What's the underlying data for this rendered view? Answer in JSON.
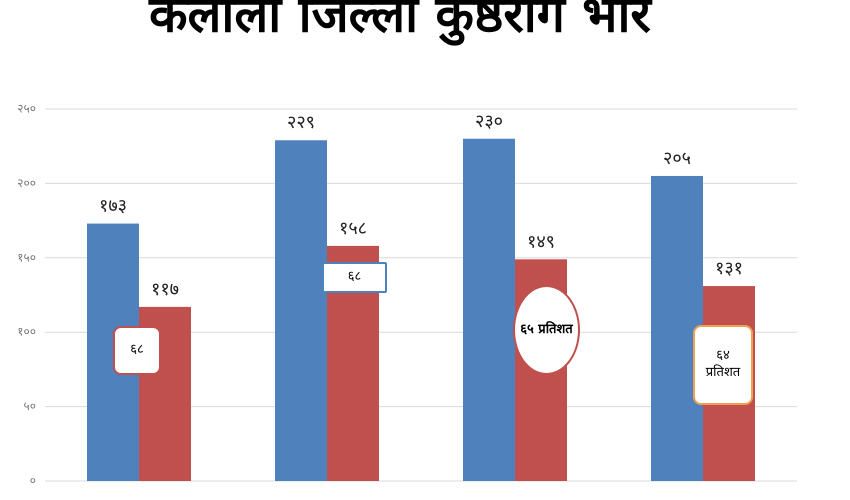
{
  "chart_data": {
    "type": "bar",
    "title": "कैलाली जिल्ला कुष्ठरोग भार",
    "categories": [
      null,
      null,
      null,
      null
    ],
    "series": [
      {
        "color": "#4f81bd",
        "values": [
          173,
          229,
          230,
          205
        ],
        "value_labels": [
          "१७३",
          "२२९",
          "२३०",
          "२०५"
        ]
      },
      {
        "color": "#c0504d",
        "values": [
          117,
          158,
          149,
          131
        ],
        "value_labels": [
          "११७",
          "१५८",
          "१४९",
          "१३१"
        ]
      }
    ],
    "ylim": [
      0,
      250
    ],
    "yticks": [
      {
        "value": 0,
        "label": "०"
      },
      {
        "value": 50,
        "label": "५०"
      },
      {
        "value": 100,
        "label": "१००"
      },
      {
        "value": 150,
        "label": "१५०"
      },
      {
        "value": 200,
        "label": "२००"
      },
      {
        "value": 250,
        "label": "२५०"
      }
    ],
    "grid": true,
    "annotations": [
      "६८",
      "६८",
      "६५ प्रतिशत",
      "६४ प्रतिशत"
    ]
  }
}
